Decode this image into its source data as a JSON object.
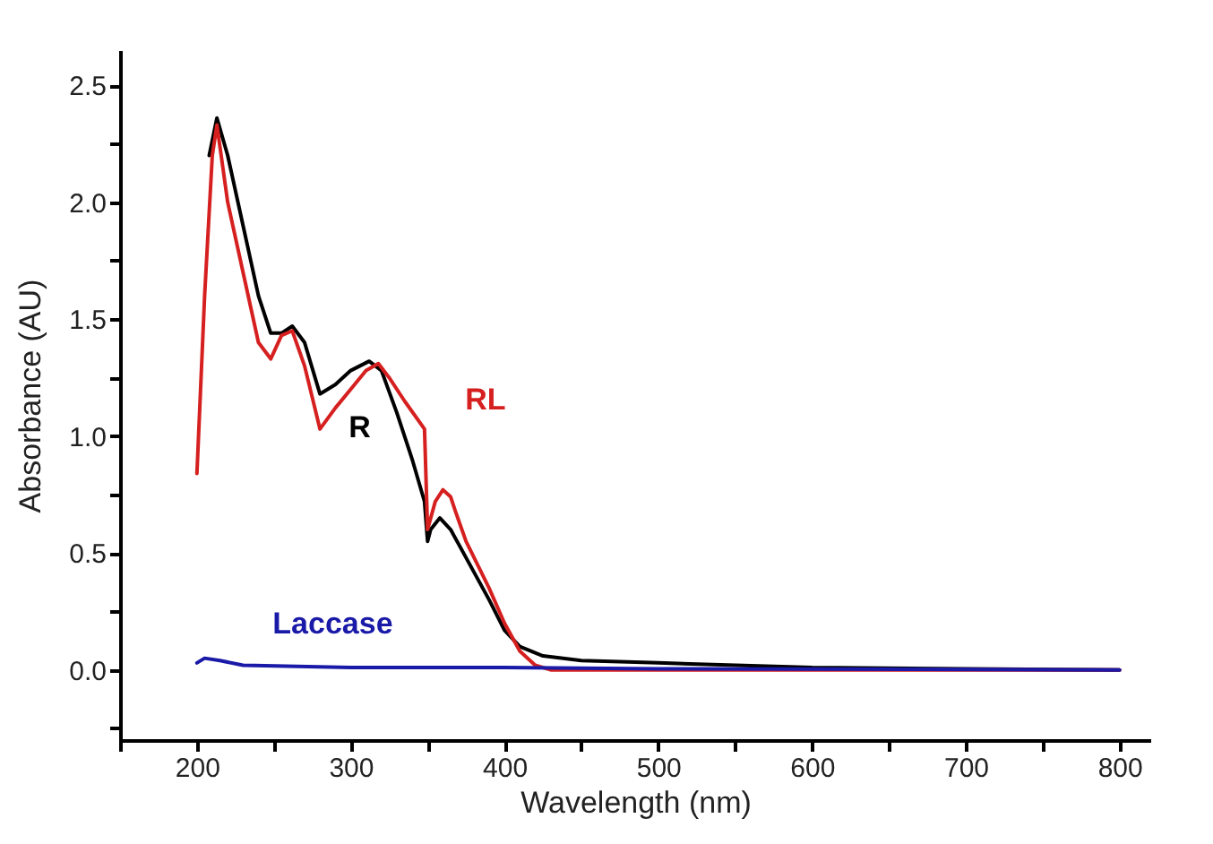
{
  "chart_data": {
    "type": "line",
    "xlabel": "Wavelength (nm)",
    "ylabel": "Absorbance (AU)",
    "xlim": [
      150,
      820
    ],
    "ylim": [
      -0.3,
      2.65
    ],
    "xticks": [
      {
        "value": 150,
        "label": null
      },
      "200",
      {
        "value": 250,
        "label": null
      },
      300,
      {
        "value": 350,
        "label": null
      },
      400,
      {
        "value": 450,
        "label": null
      },
      500,
      {
        "value": 550,
        "label": null
      },
      600,
      {
        "value": 650,
        "label": null
      },
      700,
      {
        "value": 750,
        "label": null
      },
      800
    ],
    "yticks": [
      {
        "value": -0.25,
        "label": null
      },
      {
        "value": 0,
        "label": "0.0"
      },
      {
        "value": 0.25,
        "label": null
      },
      {
        "value": 0.5,
        "label": "0.5"
      },
      {
        "value": 0.75,
        "label": null
      },
      {
        "value": 1,
        "label": "1.0"
      },
      {
        "value": 1.25,
        "label": null
      },
      {
        "value": 1.5,
        "label": "1.5"
      },
      {
        "value": 1.75,
        "label": null
      },
      {
        "value": 2,
        "label": "2.0"
      },
      {
        "value": 2.25,
        "label": null
      },
      {
        "value": 2.5,
        "label": "2.5"
      }
    ],
    "grid": false,
    "legend": false,
    "marker": "none",
    "line_style": "solid",
    "series": [
      {
        "name": "R",
        "color": "#000000",
        "x": [
          208,
          213,
          220,
          230,
          240,
          248,
          255,
          262,
          270,
          280,
          290,
          300,
          312,
          320,
          330,
          340,
          348,
          350,
          352,
          358,
          365,
          375,
          390,
          400,
          410,
          425,
          450,
          500,
          600,
          700,
          800
        ],
        "values": [
          2.2,
          2.36,
          2.2,
          1.9,
          1.6,
          1.44,
          1.44,
          1.47,
          1.4,
          1.18,
          1.22,
          1.28,
          1.32,
          1.28,
          1.1,
          0.9,
          0.72,
          0.55,
          0.6,
          0.65,
          0.6,
          0.48,
          0.3,
          0.17,
          0.1,
          0.06,
          0.04,
          0.03,
          0.01,
          0.005,
          0.0
        ]
      },
      {
        "name": "RL",
        "color": "#d62020",
        "x": [
          200,
          205,
          210,
          213,
          220,
          230,
          240,
          248,
          255,
          262,
          270,
          280,
          290,
          300,
          310,
          318,
          325,
          335,
          348,
          350,
          355,
          360,
          365,
          368,
          375,
          390,
          400,
          410,
          420,
          430,
          500,
          800
        ],
        "values": [
          0.84,
          1.6,
          2.2,
          2.33,
          2.0,
          1.7,
          1.4,
          1.33,
          1.43,
          1.45,
          1.3,
          1.03,
          1.12,
          1.2,
          1.28,
          1.31,
          1.25,
          1.15,
          1.03,
          0.6,
          0.72,
          0.77,
          0.74,
          0.68,
          0.55,
          0.35,
          0.2,
          0.08,
          0.02,
          0.0,
          0.0,
          0.0
        ]
      },
      {
        "name": "Laccase",
        "color": "#1a1aa8",
        "x": [
          200,
          205,
          215,
          230,
          300,
          400,
          500,
          800
        ],
        "values": [
          0.03,
          0.05,
          0.04,
          0.02,
          0.01,
          0.01,
          0.005,
          0.0
        ]
      }
    ]
  }
}
